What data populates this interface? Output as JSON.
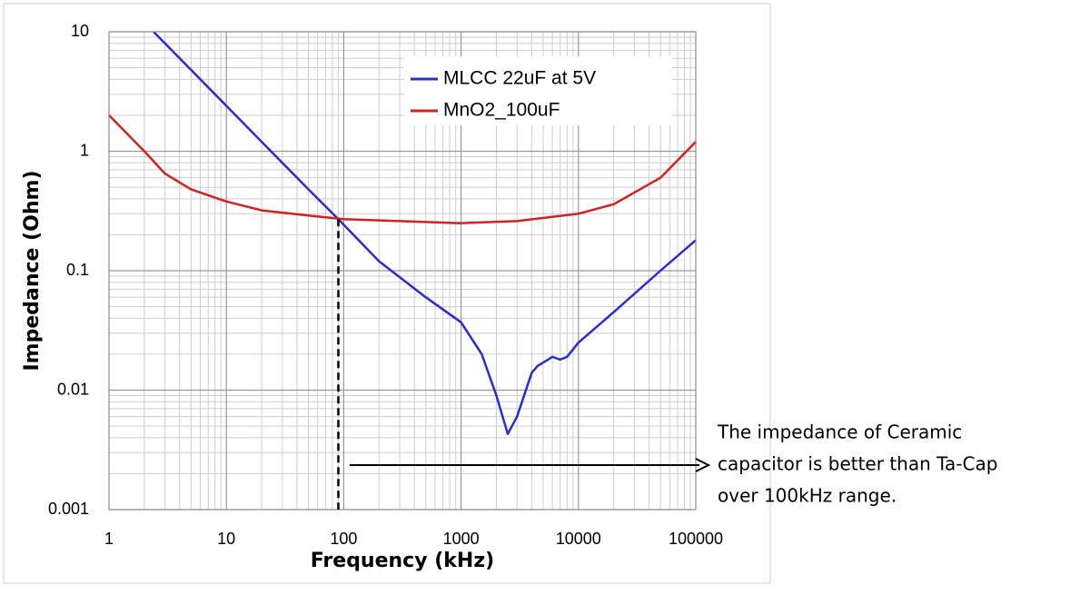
{
  "chart_data": {
    "type": "line",
    "x_label": "Frequency (kHz)",
    "y_label": "Impedance (Ohm)",
    "xlim": [
      1,
      100000
    ],
    "ylim": [
      0.001,
      10
    ],
    "xticks": [
      1,
      10,
      100,
      1000,
      10000,
      100000
    ],
    "yticks": [
      0.001,
      0.01,
      0.1,
      1,
      10
    ],
    "xscale": "log",
    "yscale": "log",
    "grid": true,
    "minor_grid": true,
    "legend": "upper right",
    "series": [
      {
        "name": "MLCC 22uF at 5V",
        "color": "#2b2bd6",
        "x": [
          2.4,
          5,
          10,
          20,
          50,
          90,
          200,
          500,
          1000,
          1500,
          2000,
          2500,
          3000,
          4000,
          4500,
          5500,
          6000,
          7000,
          8000,
          10000,
          20000,
          50000,
          100000
        ],
        "values": [
          10,
          4.8,
          2.4,
          1.2,
          0.48,
          0.27,
          0.12,
          0.06,
          0.037,
          0.02,
          0.009,
          0.0043,
          0.006,
          0.014,
          0.016,
          0.018,
          0.019,
          0.018,
          0.019,
          0.025,
          0.045,
          0.1,
          0.18
        ]
      },
      {
        "name": "MnO2_100uF",
        "color": "#d42020",
        "x": [
          1,
          2,
          3,
          5,
          10,
          20,
          50,
          100,
          300,
          1000,
          3000,
          10000,
          20000,
          50000,
          100000
        ],
        "values": [
          2,
          1.0,
          0.65,
          0.48,
          0.38,
          0.32,
          0.29,
          0.27,
          0.26,
          0.25,
          0.26,
          0.3,
          0.36,
          0.6,
          1.2
        ]
      }
    ],
    "reference_line": {
      "x": 90,
      "y": 0.27
    },
    "annotation": [
      "The impedance of Ceramic",
      "capacitor is better than Ta-Cap",
      "over 100kHz range."
    ]
  }
}
